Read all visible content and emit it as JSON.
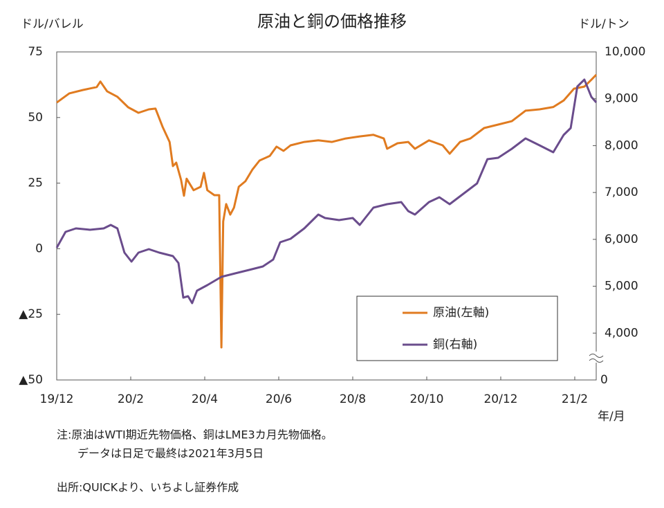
{
  "chart_data": {
    "type": "line",
    "title": "原油と銅の価格推移",
    "y_unit_label": "ドル/バレル",
    "y2_unit_label": "ドル/トン",
    "x_unit_label": "年/月",
    "xlim": [
      0,
      14.58
    ],
    "xticks": [
      {
        "value": 0,
        "label": "19/12"
      },
      {
        "value": 2,
        "label": "20/2"
      },
      {
        "value": 4,
        "label": "20/4"
      },
      {
        "value": 6,
        "label": "20/6"
      },
      {
        "value": 8,
        "label": "20/8"
      },
      {
        "value": 10,
        "label": "20/10"
      },
      {
        "value": 12,
        "label": "20/12"
      },
      {
        "value": 14,
        "label": "21/2"
      }
    ],
    "ylim": [
      -50,
      75
    ],
    "yticks": [
      75,
      50,
      25,
      0,
      {
        "value": -25,
        "label": "▲25"
      },
      {
        "value": -50,
        "label": "▲50"
      }
    ],
    "y2lim": [
      3000,
      10000
    ],
    "y2ticks": [
      {
        "value": 10000,
        "label": "10,000"
      },
      {
        "value": 9000,
        "label": "9,000"
      },
      {
        "value": 8000,
        "label": "8,000"
      },
      {
        "value": 7000,
        "label": "7,000"
      },
      {
        "value": 6000,
        "label": "6,000"
      },
      {
        "value": 5000,
        "label": "5,000"
      },
      {
        "value": 4000,
        "label": "4,000"
      }
    ],
    "y2_break_label": "0",
    "legend": "lower right",
    "series": [
      {
        "name": "原油(左軸)",
        "color": "#e07b20",
        "axis": "y",
        "x": [
          0,
          0.34,
          0.71,
          1.08,
          1.18,
          1.36,
          1.64,
          1.93,
          2.21,
          2.49,
          2.67,
          2.86,
          3.05,
          3.14,
          3.23,
          3.36,
          3.44,
          3.51,
          3.7,
          3.89,
          3.98,
          4.07,
          4.26,
          4.39,
          4.45,
          4.5,
          4.58,
          4.69,
          4.79,
          4.92,
          5.1,
          5.29,
          5.48,
          5.76,
          5.94,
          6.13,
          6.32,
          6.69,
          7.07,
          7.44,
          7.81,
          8.19,
          8.56,
          8.84,
          8.93,
          9.21,
          9.5,
          9.68,
          10.06,
          10.43,
          10.62,
          10.9,
          11.18,
          11.55,
          11.93,
          12.3,
          12.67,
          13.05,
          13.42,
          13.7,
          13.98,
          14.26,
          14.45,
          14.58
        ],
        "values": [
          55.7,
          59.2,
          60.5,
          61.6,
          63.7,
          60,
          57.9,
          53.9,
          51.8,
          53.1,
          53.4,
          46.5,
          40.7,
          31.5,
          32.8,
          26.2,
          20.2,
          26.7,
          22.3,
          23.6,
          28.9,
          22.3,
          20.4,
          20.4,
          -37.6,
          10.4,
          17,
          13,
          15.7,
          23.6,
          25.7,
          30.2,
          33.6,
          35.4,
          38.9,
          37.3,
          39.4,
          40.7,
          41.3,
          40.7,
          42,
          42.8,
          43.4,
          42,
          38.1,
          40.2,
          40.7,
          38.1,
          41.3,
          39.4,
          36.2,
          40.7,
          42,
          46,
          47.3,
          48.6,
          52.6,
          53.1,
          54,
          56.5,
          61,
          61.8,
          64.4,
          66.3
        ]
      },
      {
        "name": "銅(右軸)",
        "color": "#6a4c8c",
        "axis": "y2",
        "x": [
          0,
          0.24,
          0.52,
          0.9,
          1.27,
          1.46,
          1.64,
          1.83,
          2.02,
          2.21,
          2.49,
          2.77,
          3.14,
          3.29,
          3.42,
          3.55,
          3.66,
          3.79,
          4.07,
          4.45,
          4.82,
          5.2,
          5.57,
          5.85,
          6.04,
          6.32,
          6.69,
          7.07,
          7.25,
          7.63,
          8.0,
          8.19,
          8.56,
          8.93,
          9.31,
          9.5,
          9.68,
          10.06,
          10.34,
          10.62,
          10.99,
          11.36,
          11.64,
          11.93,
          12.3,
          12.67,
          13.05,
          13.42,
          13.7,
          13.89,
          14.07,
          14.26,
          14.45,
          14.58
        ],
        "values": [
          5821,
          6160,
          6234,
          6205,
          6234,
          6308,
          6234,
          5717,
          5525,
          5717,
          5791,
          5717,
          5643,
          5496,
          4757,
          4787,
          4639,
          4905,
          5023,
          5200,
          5274,
          5348,
          5422,
          5570,
          5939,
          6013,
          6234,
          6529,
          6456,
          6411,
          6456,
          6308,
          6677,
          6751,
          6795,
          6603,
          6529,
          6795,
          6899,
          6751,
          6972,
          7194,
          7711,
          7740,
          7933,
          8154,
          8006,
          7859,
          8228,
          8376,
          9262,
          9409,
          9040,
          8922
        ]
      }
    ],
    "notes": [
      "注:原油はWTI期近先物価格、銅はLME3カ月先物価格。",
      "データは日足で最終は2021年3月5日",
      "出所:QUICKより、いちよし証券作成"
    ]
  }
}
